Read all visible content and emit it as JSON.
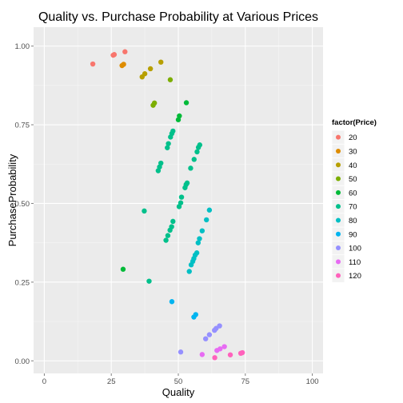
{
  "chart_data": {
    "type": "scatter",
    "title": "Quality vs. Purchase Probability at Various Prices",
    "xlabel": "Quality",
    "ylabel": "PurchaseProbability",
    "xlim": [
      -4,
      104
    ],
    "ylim": [
      -0.04,
      1.06
    ],
    "x_ticks": [
      0,
      25,
      50,
      75,
      100
    ],
    "y_ticks": [
      0.0,
      0.25,
      0.5,
      0.75,
      1.0
    ],
    "x_tick_labels": [
      "0",
      "25",
      "50",
      "75",
      "100"
    ],
    "y_tick_labels": [
      "0.00",
      "0.25",
      "0.50",
      "0.75",
      "1.00"
    ],
    "grid": true,
    "legend": {
      "title": "factor(Price)",
      "position": "right"
    },
    "series": [
      {
        "name": "20",
        "color": "#F8766D",
        "points": [
          [
            18.1,
            0.943
          ],
          [
            25.7,
            0.971
          ],
          [
            26.1,
            0.973
          ],
          [
            30.1,
            0.982
          ]
        ]
      },
      {
        "name": "30",
        "color": "#DE8C00",
        "points": [
          [
            29.0,
            0.938
          ],
          [
            29.6,
            0.942
          ]
        ]
      },
      {
        "name": "40",
        "color": "#B79F00",
        "points": [
          [
            36.5,
            0.902
          ],
          [
            37.5,
            0.912
          ],
          [
            39.6,
            0.928
          ],
          [
            43.5,
            0.949
          ]
        ]
      },
      {
        "name": "50",
        "color": "#7CAE00",
        "points": [
          [
            40.6,
            0.812
          ],
          [
            41.1,
            0.819
          ],
          [
            47.0,
            0.893
          ]
        ]
      },
      {
        "name": "60",
        "color": "#00BA38",
        "points": [
          [
            29.4,
            0.291
          ],
          [
            50.0,
            0.766
          ],
          [
            50.4,
            0.778
          ],
          [
            53.0,
            0.82
          ]
        ]
      },
      {
        "name": "70",
        "color": "#00C08B",
        "points": [
          [
            39.1,
            0.253
          ],
          [
            42.5,
            0.604
          ],
          [
            43.0,
            0.616
          ],
          [
            43.5,
            0.628
          ],
          [
            45.9,
            0.677
          ],
          [
            46.3,
            0.69
          ],
          [
            47.1,
            0.711
          ],
          [
            47.6,
            0.722
          ],
          [
            48.0,
            0.73
          ],
          [
            37.3,
            0.476
          ],
          [
            45.4,
            0.383
          ],
          [
            46.1,
            0.398
          ],
          [
            46.9,
            0.415
          ],
          [
            47.5,
            0.426
          ],
          [
            48.0,
            0.443
          ],
          [
            50.3,
            0.49
          ],
          [
            50.9,
            0.502
          ],
          [
            51.2,
            0.52
          ],
          [
            52.5,
            0.55
          ],
          [
            52.9,
            0.56
          ],
          [
            53.3,
            0.565
          ],
          [
            54.6,
            0.612
          ],
          [
            55.9,
            0.64
          ],
          [
            57.0,
            0.664
          ],
          [
            57.5,
            0.678
          ],
          [
            58.0,
            0.686
          ]
        ]
      },
      {
        "name": "80",
        "color": "#00BFC4",
        "points": [
          [
            54.1,
            0.284
          ],
          [
            54.8,
            0.305
          ],
          [
            55.4,
            0.316
          ],
          [
            55.8,
            0.325
          ],
          [
            56.3,
            0.336
          ],
          [
            56.9,
            0.343
          ],
          [
            57.4,
            0.375
          ],
          [
            57.9,
            0.388
          ],
          [
            58.9,
            0.413
          ],
          [
            60.5,
            0.448
          ],
          [
            61.6,
            0.479
          ]
        ]
      },
      {
        "name": "90",
        "color": "#00B4F0",
        "points": [
          [
            47.6,
            0.188
          ],
          [
            55.8,
            0.139
          ],
          [
            56.5,
            0.147
          ]
        ]
      },
      {
        "name": "100",
        "color": "#9590FF",
        "points": [
          [
            50.9,
            0.028
          ],
          [
            60.2,
            0.07
          ],
          [
            61.6,
            0.083
          ],
          [
            63.5,
            0.097
          ],
          [
            64.1,
            0.103
          ],
          [
            65.4,
            0.111
          ]
        ]
      },
      {
        "name": "110",
        "color": "#E76BF3",
        "points": [
          [
            58.9,
            0.02
          ],
          [
            64.4,
            0.033
          ],
          [
            65.6,
            0.038
          ],
          [
            67.2,
            0.045
          ]
        ]
      },
      {
        "name": "120",
        "color": "#FF62BC",
        "points": [
          [
            63.6,
            0.01
          ],
          [
            69.4,
            0.019
          ],
          [
            73.3,
            0.024
          ],
          [
            73.9,
            0.026
          ]
        ]
      }
    ]
  }
}
